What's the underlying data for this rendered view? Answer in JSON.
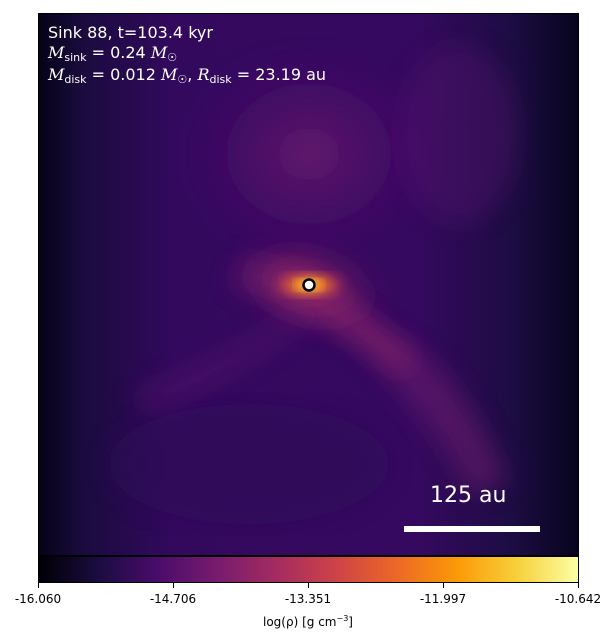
{
  "annotation": {
    "line1": "Sink 88, t=103.4 kyr",
    "msink_sub": "sink",
    "msink_value": "0.24",
    "mdisk_sub": "disk",
    "mdisk_value": "0.012",
    "rdisk_sub": "disk",
    "rdisk_value": "23.19",
    "rdisk_unit": "au"
  },
  "scale_bar": {
    "label": "125 au"
  },
  "colorbar": {
    "ticks": [
      "-16.060",
      "-14.706",
      "-13.351",
      "-11.997",
      "-10.642"
    ],
    "label_prefix": "log(ρ) [g cm",
    "label_exp": "−3",
    "label_suffix": "]",
    "colormap": "inferno",
    "colors": [
      "#000004",
      "#1b0c41",
      "#4a0c6b",
      "#781c6d",
      "#a52c60",
      "#cf4446",
      "#ed6925",
      "#fb9b06",
      "#f7d13d",
      "#fcffa4"
    ]
  },
  "sink_marker": {
    "fill": "#ffffff",
    "edge": "#000000"
  }
}
